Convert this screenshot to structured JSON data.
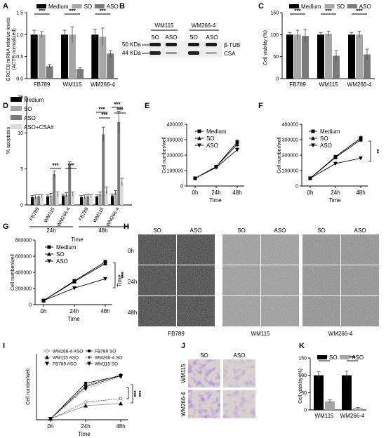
{
  "colors": {
    "medium": "#000000",
    "so": "#a6a6a6",
    "aso": "#7a7a7a",
    "asocsa": "#d9d9d9"
  },
  "panel_labels": [
    "A",
    "B",
    "C",
    "D",
    "E",
    "F",
    "G",
    "H",
    "I",
    "J",
    "K"
  ],
  "sig": {
    "three": "***",
    "two": "**"
  },
  "common": {
    "legend_medium": "Medium",
    "legend_so": "SO",
    "legend_aso": "ASO",
    "time_label": "Time",
    "cell_number_label": "Cell number/well",
    "cell_viability_label": "Cell viability (%)"
  },
  "panel_a": {
    "ylabel_lines": [
      "ERCC8 mRNA relative levels",
      "(ACTB normalized)"
    ]
  },
  "panel_b": {
    "col_groups": [
      "WM115",
      "WM266-4"
    ],
    "lane_labels": [
      "SO",
      "ASO",
      "SO",
      "ASO"
    ],
    "markers": [
      "50 KDa",
      "44 KDa"
    ],
    "bands": [
      "β-TUB",
      "CSA"
    ]
  },
  "panel_d": {
    "ylabel": "% apoptosis",
    "legend": [
      "Medium",
      "SO",
      "ASO",
      "ASO+CSA#"
    ],
    "time_groups": [
      "24h",
      "48h"
    ]
  },
  "panel_h": {
    "col_labels": [
      "SO",
      "ASO",
      "SO",
      "ASO",
      "SO",
      "ASO"
    ],
    "row_labels": [
      "0h",
      "24h",
      "48h"
    ],
    "time_axis": "Time",
    "cell_lines": [
      "FB789",
      "WM115",
      "WM266-4"
    ]
  },
  "panel_i": {
    "legend": [
      "WM266-4 ASO",
      "WM115 ASO",
      "FB789 ASO",
      "FB789 SO",
      "WM266-4 SO",
      "WM115 SO"
    ]
  },
  "panel_j": {
    "col_labels": [
      "SO",
      "ASO"
    ],
    "row_labels": [
      "WM115",
      "WM266-4"
    ]
  },
  "panel_k": {
    "legend": [
      "SO",
      "ASO"
    ]
  },
  "chart_data": [
    {
      "panel": "A",
      "type": "bar",
      "categories": [
        "FB789",
        "WM115",
        "WM266-4"
      ],
      "series": [
        {
          "name": "Medium",
          "values": [
            1.0,
            1.0,
            1.0
          ],
          "err": [
            0.1,
            0.1,
            0.12
          ]
        },
        {
          "name": "SO",
          "values": [
            1.0,
            1.0,
            0.95
          ],
          "err": [
            0.07,
            0.18,
            0.2
          ]
        },
        {
          "name": "ASO",
          "values": [
            0.28,
            0.22,
            0.57
          ],
          "err": [
            0.04,
            0.03,
            0.07
          ]
        }
      ],
      "ylim": [
        0,
        1.5
      ],
      "yticks": [
        0.0,
        0.5,
        1.0,
        1.5
      ],
      "ytick_labels": [
        "0.0",
        "0.5",
        "1.0",
        "1.5"
      ],
      "sig": [
        [
          "FB789",
          "***"
        ],
        [
          "WM115",
          "***"
        ],
        [
          "WM266-4",
          "***"
        ]
      ]
    },
    {
      "panel": "C",
      "type": "bar",
      "categories": [
        "FB789",
        "WM115",
        "WM266-4"
      ],
      "series": [
        {
          "name": "Medium",
          "values": [
            100,
            100,
            100
          ],
          "err": [
            5,
            5,
            5
          ]
        },
        {
          "name": "SO",
          "values": [
            100,
            102,
            100
          ],
          "err": [
            10,
            6,
            8
          ]
        },
        {
          "name": "ASO",
          "values": [
            97,
            52,
            55
          ],
          "err": [
            15,
            12,
            12
          ]
        }
      ],
      "ylim": [
        0,
        150
      ],
      "yticks": [
        0,
        50,
        100,
        150
      ],
      "ytick_labels": [
        "0",
        "50",
        "100",
        "150"
      ],
      "sig": [
        [
          "FB789",
          "***"
        ],
        [
          "WM115",
          "***"
        ],
        [
          "WM266-4",
          "***"
        ]
      ]
    },
    {
      "panel": "D",
      "type": "bar",
      "categories": [
        "FB789",
        "WM115",
        "WM266-4",
        "FB789",
        "WM115",
        "WM266-4"
      ],
      "series": [
        {
          "name": "Medium",
          "values": [
            1.1,
            1.2,
            1.3,
            1.1,
            1.2,
            1.3
          ],
          "err": [
            0.2,
            0.2,
            0.2,
            0.2,
            0.2,
            0.2
          ]
        },
        {
          "name": "SO",
          "values": [
            1.1,
            1.3,
            1.4,
            1.1,
            1.5,
            1.7
          ],
          "err": [
            0.3,
            0.3,
            0.3,
            0.3,
            0.3,
            0.3
          ]
        },
        {
          "name": "ASO",
          "values": [
            1.2,
            4.3,
            5.5,
            1.2,
            9.8,
            11.5
          ],
          "err": [
            0.2,
            0.4,
            0.5,
            0.3,
            1.0,
            1.5
          ]
        },
        {
          "name": "ASO+CSA#",
          "values": [
            1.2,
            1.5,
            1.5,
            1.2,
            2.0,
            3.2
          ],
          "err": [
            0.2,
            0.3,
            0.3,
            0.2,
            0.5,
            0.5
          ]
        }
      ],
      "ylim": [
        0,
        15
      ],
      "yticks": [
        0,
        5,
        10,
        15
      ],
      "ytick_labels": [
        "0",
        "5",
        "10",
        "15"
      ]
    },
    {
      "panel": "E",
      "type": "line",
      "x": [
        "0h",
        "24h",
        "48h"
      ],
      "series": [
        {
          "name": "Medium",
          "values": [
            50000,
            125000,
            285000
          ],
          "err": [
            0,
            5000,
            20000
          ]
        },
        {
          "name": "SO",
          "values": [
            50000,
            125000,
            270000
          ],
          "err": [
            0,
            5000,
            20000
          ]
        },
        {
          "name": "ASO",
          "values": [
            50000,
            120000,
            235000
          ],
          "err": [
            0,
            5000,
            15000
          ]
        }
      ],
      "ylim": [
        0,
        400000
      ],
      "yticks": [
        0,
        100000,
        200000,
        300000,
        400000
      ],
      "ytick_labels": [
        "0",
        "100000",
        "200000",
        "300000",
        "400000"
      ]
    },
    {
      "panel": "F",
      "type": "line",
      "x": [
        "0h",
        "24h",
        "48h"
      ],
      "series": [
        {
          "name": "Medium",
          "values": [
            50000,
            190000,
            310000
          ],
          "err": [
            0,
            10000,
            20000
          ]
        },
        {
          "name": "SO",
          "values": [
            50000,
            185000,
            300000
          ],
          "err": [
            0,
            10000,
            15000
          ]
        },
        {
          "name": "ASO",
          "values": [
            50000,
            145000,
            180000
          ],
          "err": [
            0,
            8000,
            10000
          ]
        }
      ],
      "ylim": [
        0,
        400000
      ],
      "yticks": [
        0,
        100000,
        200000,
        300000,
        400000
      ],
      "ytick_labels": [
        "0",
        "100000",
        "200000",
        "300000",
        "400000"
      ],
      "sig": "**"
    },
    {
      "panel": "G",
      "type": "line",
      "x": [
        "0h",
        "24h",
        "48h"
      ],
      "series": [
        {
          "name": "Medium",
          "values": [
            50000,
            295000,
            530000
          ],
          "err": [
            0,
            10000,
            30000
          ]
        },
        {
          "name": "SO",
          "values": [
            50000,
            285000,
            510000
          ],
          "err": [
            0,
            10000,
            30000
          ]
        },
        {
          "name": "ASO",
          "values": [
            50000,
            205000,
            320000
          ],
          "err": [
            0,
            10000,
            20000
          ]
        }
      ],
      "ylim": [
        0,
        800000
      ],
      "yticks": [
        0,
        200000,
        400000,
        600000,
        800000
      ],
      "ytick_labels": [
        "0",
        "200000",
        "400000",
        "600000",
        "800000"
      ],
      "sig": "***"
    },
    {
      "panel": "I",
      "type": "line",
      "x": [
        "0h",
        "24h",
        "48h"
      ],
      "series": [
        {
          "name": "WM266-4 ASO",
          "values": [
            2,
            40,
            48
          ],
          "err": [
            0,
            3,
            3
          ]
        },
        {
          "name": "WM115 ASO",
          "values": [
            2,
            32,
            37
          ],
          "err": [
            0,
            3,
            3
          ]
        },
        {
          "name": "FB789 ASO",
          "values": [
            2,
            70,
            98
          ],
          "err": [
            0,
            4,
            4
          ]
        },
        {
          "name": "FB789 SO",
          "values": [
            2,
            83,
            100
          ],
          "err": [
            0,
            4,
            5
          ]
        },
        {
          "name": "WM266-4 SO",
          "values": [
            2,
            78,
            102
          ],
          "err": [
            0,
            4,
            5
          ]
        },
        {
          "name": "WM115 SO",
          "values": [
            2,
            75,
            100
          ],
          "err": [
            0,
            4,
            5
          ]
        }
      ],
      "ylim": [
        0,
        150
      ],
      "sig": "***"
    },
    {
      "panel": "K",
      "type": "bar",
      "categories": [
        "WM115",
        "WM266-4"
      ],
      "series": [
        {
          "name": "SO",
          "values": [
            100,
            100
          ],
          "err": [
            10,
            12
          ]
        },
        {
          "name": "ASO",
          "values": [
            25,
            5
          ],
          "err": [
            4,
            2
          ]
        }
      ],
      "ylim": [
        0,
        150
      ],
      "yticks": [
        0,
        50,
        100,
        150
      ],
      "ytick_labels": [
        "0",
        "50",
        "100",
        "150"
      ],
      "sig": [
        [
          "WM115",
          "***"
        ],
        [
          "WM266-4",
          "***"
        ]
      ]
    }
  ]
}
